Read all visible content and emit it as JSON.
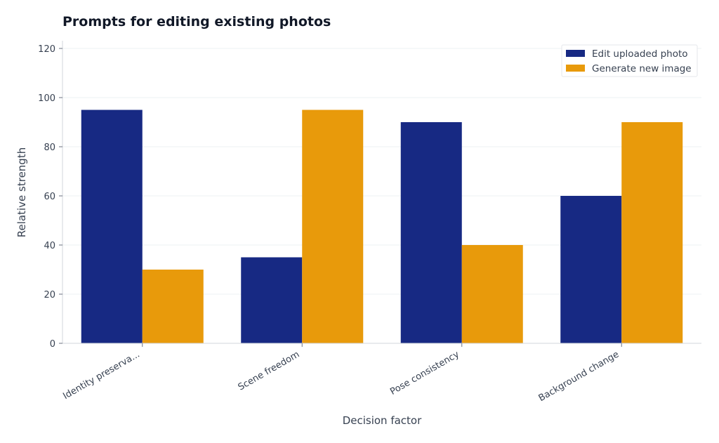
{
  "chart_data": {
    "type": "bar",
    "title": "Prompts for editing existing photos",
    "xlabel": "Decision factor",
    "ylabel": "Relative strength",
    "categories": [
      "Identity preserva...",
      "Scene freedom",
      "Pose consistency",
      "Background change"
    ],
    "series": [
      {
        "name": "Edit uploaded photo",
        "color": "#172983",
        "values": [
          95,
          35,
          90,
          60
        ]
      },
      {
        "name": "Generate new image",
        "color": "#e89a0b",
        "values": [
          30,
          95,
          40,
          90
        ]
      }
    ],
    "ylim": [
      0,
      120
    ],
    "yticks": [
      0,
      20,
      40,
      60,
      80,
      100,
      120
    ],
    "grid": true,
    "legend_position": "top-right"
  }
}
